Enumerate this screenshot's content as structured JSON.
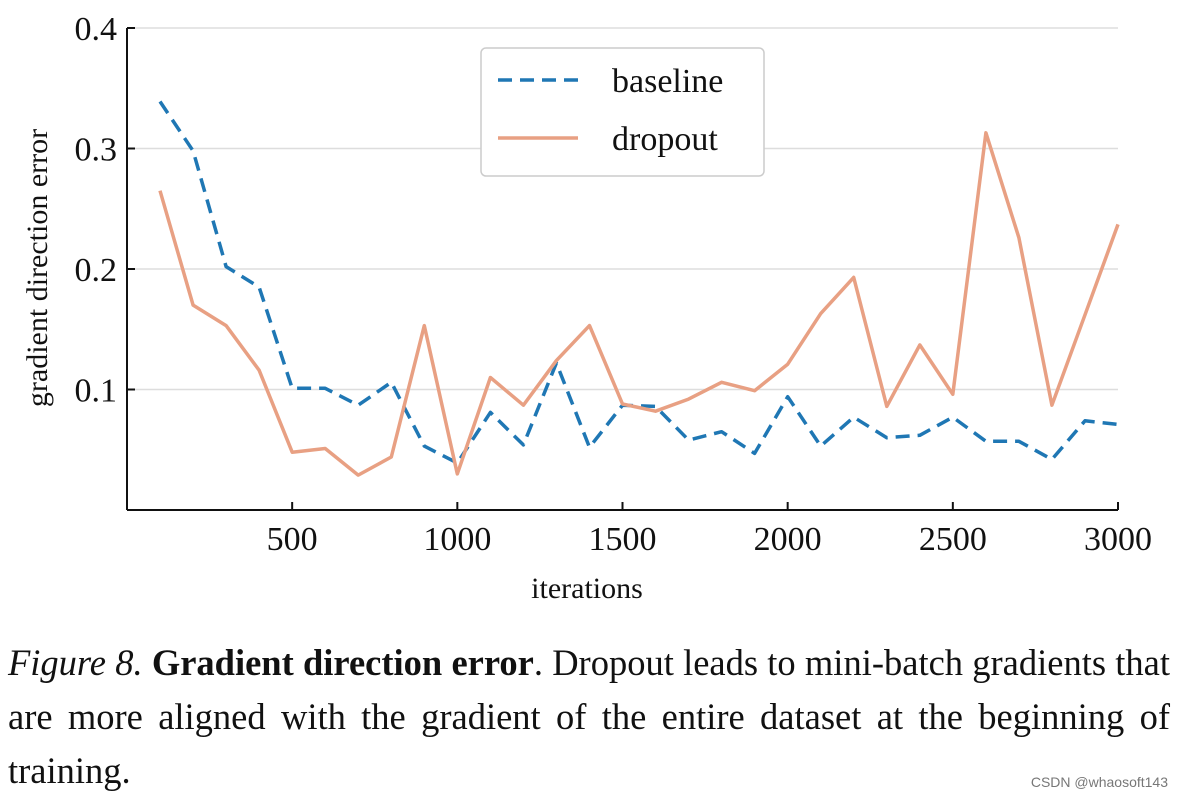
{
  "chart_data": {
    "type": "line",
    "xlabel": "iterations",
    "ylabel": "gradient direction error",
    "xlim": [
      0,
      3000
    ],
    "ylim": [
      0,
      0.4
    ],
    "xticks": [
      500,
      1000,
      1500,
      2000,
      2500,
      3000
    ],
    "yticks": [
      0.1,
      0.2,
      0.3,
      0.4
    ],
    "xtick_labels": [
      "500",
      "1000",
      "1500",
      "2000",
      "2500",
      "3000"
    ],
    "ytick_labels": [
      "0.1",
      "0.2",
      "0.3",
      "0.4"
    ],
    "grid": "horizontal",
    "legend_position": "top-center",
    "x": [
      100,
      200,
      300,
      400,
      500,
      600,
      700,
      800,
      900,
      1000,
      1100,
      1200,
      1300,
      1400,
      1500,
      1600,
      1700,
      1800,
      1900,
      2000,
      2100,
      2200,
      2300,
      2400,
      2500,
      2600,
      2700,
      2800,
      2900,
      3000
    ],
    "series": [
      {
        "name": "baseline",
        "color": "#1f77b4",
        "style": "dashed",
        "values": [
          0.339,
          0.298,
          0.202,
          0.185,
          0.101,
          0.101,
          0.087,
          0.106,
          0.053,
          0.039,
          0.081,
          0.054,
          0.122,
          0.052,
          0.087,
          0.086,
          0.058,
          0.065,
          0.047,
          0.094,
          0.053,
          0.077,
          0.06,
          0.062,
          0.077,
          0.057,
          0.057,
          0.042,
          0.074,
          0.071
        ]
      },
      {
        "name": "dropout",
        "color": "#e8a083",
        "style": "solid",
        "values": [
          0.265,
          0.17,
          0.153,
          0.116,
          0.048,
          0.051,
          0.029,
          0.044,
          0.153,
          0.03,
          0.11,
          0.087,
          0.124,
          0.153,
          0.088,
          0.082,
          0.092,
          0.106,
          0.099,
          0.121,
          0.163,
          0.193,
          0.086,
          0.137,
          0.096,
          0.313,
          0.226,
          0.087,
          0.162,
          0.237
        ]
      }
    ]
  },
  "caption": {
    "figure_number": "Figure 8.",
    "title": "Gradient direction error",
    "text": ". Dropout leads to mini-batch gradients that are more aligned with the gradient of the entire dataset at the beginning of training."
  },
  "watermark": "CSDN @whaosoft143"
}
